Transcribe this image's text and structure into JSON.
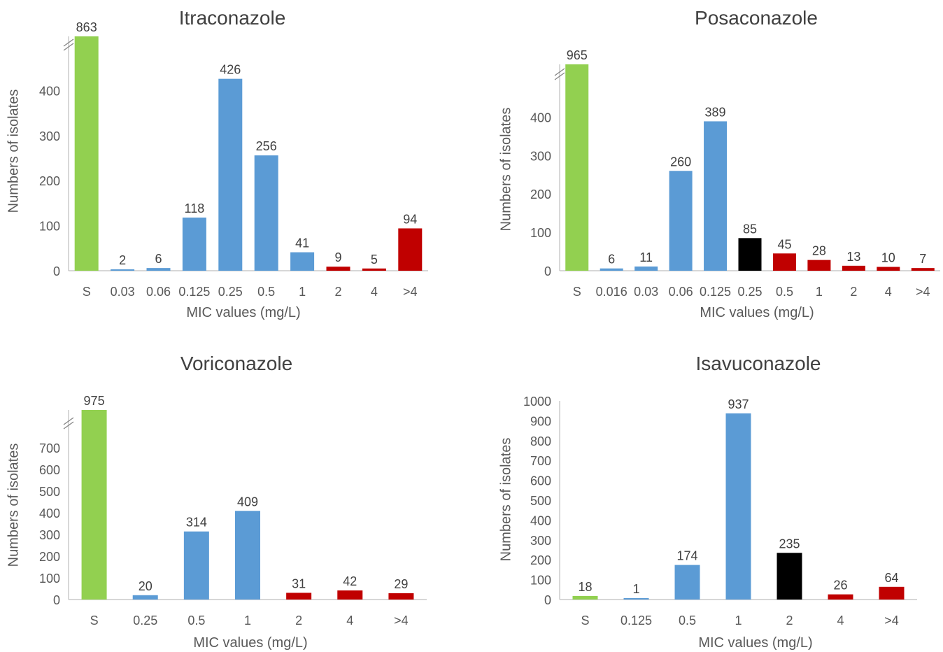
{
  "colors": {
    "S": "#92d050",
    "blue": "#5b9bd5",
    "black": "#000000",
    "red": "#c00000"
  },
  "chart_data": [
    {
      "type": "bar",
      "title": "Itraconazole",
      "xlabel": "MIC values (mg/L)",
      "ylabel": "Numbers of isolates",
      "categories": [
        "S",
        "0.03",
        "0.06",
        "0.125",
        "0.25",
        "0.5",
        "1",
        "2",
        "4",
        ">4"
      ],
      "values": [
        863,
        2,
        6,
        118,
        426,
        256,
        41,
        9,
        5,
        94
      ],
      "bar_colors": [
        "S",
        "blue",
        "blue",
        "blue",
        "blue",
        "blue",
        "blue",
        "red",
        "red",
        "red"
      ],
      "yticks": [
        0,
        100,
        200,
        300,
        400
      ],
      "ylim": [
        0,
        500
      ],
      "axis_break": true,
      "grid": false,
      "legend": "none"
    },
    {
      "type": "bar",
      "title": "Posaconazole",
      "xlabel": "MIC values (mg/L)",
      "ylabel": "Numbers of isolates",
      "categories": [
        "S",
        "0.016",
        "0.03",
        "0.06",
        "0.125",
        "0.25",
        "0.5",
        "1",
        "2",
        "4",
        ">4"
      ],
      "values": [
        965,
        6,
        11,
        260,
        389,
        85,
        45,
        28,
        13,
        10,
        7
      ],
      "bar_colors": [
        "S",
        "blue",
        "blue",
        "blue",
        "blue",
        "black",
        "red",
        "red",
        "red",
        "red",
        "red"
      ],
      "yticks": [
        0,
        100,
        200,
        300,
        400
      ],
      "ylim": [
        0,
        510
      ],
      "axis_break": true,
      "grid": false,
      "legend": "none"
    },
    {
      "type": "bar",
      "title": "Voriconazole",
      "xlabel": "MIC values (mg/L)",
      "ylabel": "Numbers of isolates",
      "categories": [
        "S",
        "0.25",
        "0.5",
        "1",
        "2",
        "4",
        ">4"
      ],
      "values": [
        975,
        20,
        314,
        409,
        31,
        42,
        29
      ],
      "bar_colors": [
        "S",
        "blue",
        "blue",
        "blue",
        "red",
        "red",
        "red"
      ],
      "yticks": [
        0,
        100,
        200,
        300,
        400,
        500,
        600,
        700
      ],
      "ylim": [
        0,
        810
      ],
      "axis_break": true,
      "grid": false,
      "legend": "none"
    },
    {
      "type": "bar",
      "title": "Isavuconazole",
      "xlabel": "MIC values (mg/L)",
      "ylabel": "Numbers of isolates",
      "categories": [
        "S",
        "0.125",
        "0.5",
        "1",
        "2",
        "4",
        ">4"
      ],
      "values": [
        18,
        1,
        174,
        937,
        235,
        26,
        64
      ],
      "bar_colors": [
        "S",
        "blue",
        "blue",
        "blue",
        "black",
        "red",
        "red"
      ],
      "yticks": [
        0,
        100,
        200,
        300,
        400,
        500,
        600,
        700,
        800,
        900,
        1000
      ],
      "ylim": [
        0,
        1000
      ],
      "axis_break": false,
      "grid": false,
      "legend": "none"
    }
  ]
}
